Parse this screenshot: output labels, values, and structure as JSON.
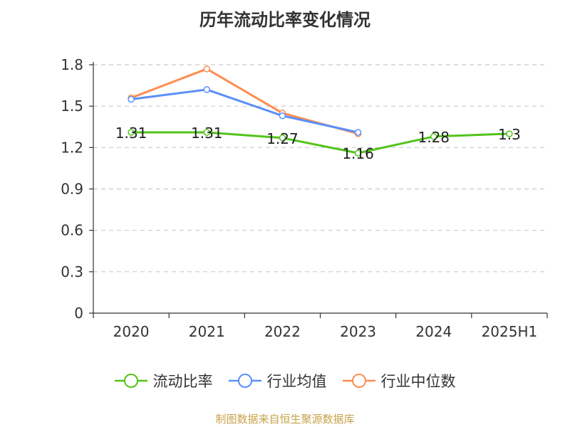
{
  "chart_data": {
    "type": "line",
    "title": "历年流动比率变化情况",
    "categories": [
      "2020",
      "2021",
      "2022",
      "2023",
      "2024",
      "2025H1"
    ],
    "ylim": [
      0,
      1.8
    ],
    "yticks": [
      "0",
      "0.3",
      "0.6",
      "0.9",
      "1.2",
      "1.5",
      "1.8"
    ],
    "grid": true,
    "legend_position": "bottom",
    "series": [
      {
        "name": "流动比率",
        "color": "#52c41a",
        "values": [
          1.31,
          1.31,
          1.27,
          1.16,
          1.28,
          1.3
        ],
        "labels": [
          "1.31",
          "1.31",
          "1.27",
          "1.16",
          "1.28",
          "1.3"
        ]
      },
      {
        "name": "行业均值",
        "color": "#5b8ff9",
        "values": [
          1.55,
          1.62,
          1.43,
          1.31,
          null,
          null
        ]
      },
      {
        "name": "行业中位数",
        "color": "#ff8c50",
        "values": [
          1.56,
          1.77,
          1.45,
          1.3,
          null,
          null
        ]
      }
    ]
  },
  "source": "制图数据来自恒生聚源数据库"
}
